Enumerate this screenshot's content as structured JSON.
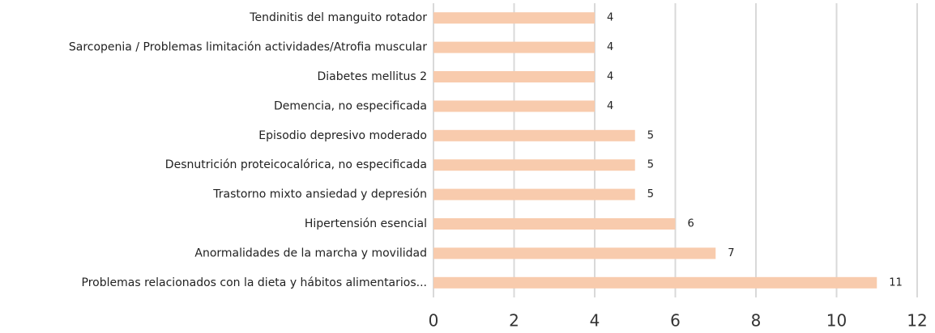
{
  "chart_data": {
    "type": "bar",
    "orientation": "horizontal",
    "categories": [
      "Tendinitis del manguito rotador",
      "Sarcopenia / Problemas limitación actividades/Atrofia muscular",
      "Diabetes mellitus 2",
      "Demencia, no especificada",
      "Episodio depresivo moderado",
      "Desnutrición proteicocalórica, no especificada",
      "Trastorno mixto ansiedad y depresión",
      "Hipertensión esencial",
      "Anormalidades de la marcha y movilidad",
      "Problemas relacionados con la dieta y hábitos alimentarios..."
    ],
    "values": [
      4,
      4,
      4,
      4,
      5,
      5,
      5,
      6,
      7,
      11
    ],
    "color": "#f8cbad",
    "xlim": [
      0,
      12
    ],
    "xticks": [
      0,
      2,
      4,
      6,
      8,
      10,
      12
    ],
    "grid": true
  }
}
